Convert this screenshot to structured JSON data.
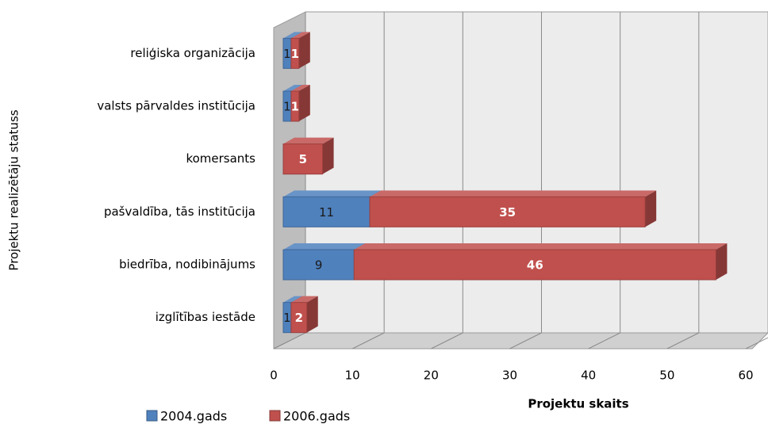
{
  "chart_data": {
    "type": "stacked_bar_3d",
    "orientation": "horizontal",
    "x_label": "Projektu skaits",
    "y_label": "Projektu realizētāju statuss",
    "categories": [
      "reliģiska organizācija",
      "valsts pārvaldes institūcija",
      "komersants",
      "pašvaldība, tās institūcija",
      "biedrība, nodibinājums",
      "izglītības iestāde"
    ],
    "series": [
      {
        "name": "2004.gads",
        "color": "#4f81bd",
        "values": [
          1,
          1,
          null,
          11,
          9,
          1
        ]
      },
      {
        "name": "2006.gads",
        "color": "#c0504d",
        "values": [
          1,
          1,
          5,
          35,
          46,
          2
        ]
      }
    ],
    "xlim": [
      0,
      60
    ],
    "xticks": [
      0,
      10,
      20,
      30,
      40,
      50,
      60
    ],
    "grid": true,
    "legend": "bottom-left"
  }
}
